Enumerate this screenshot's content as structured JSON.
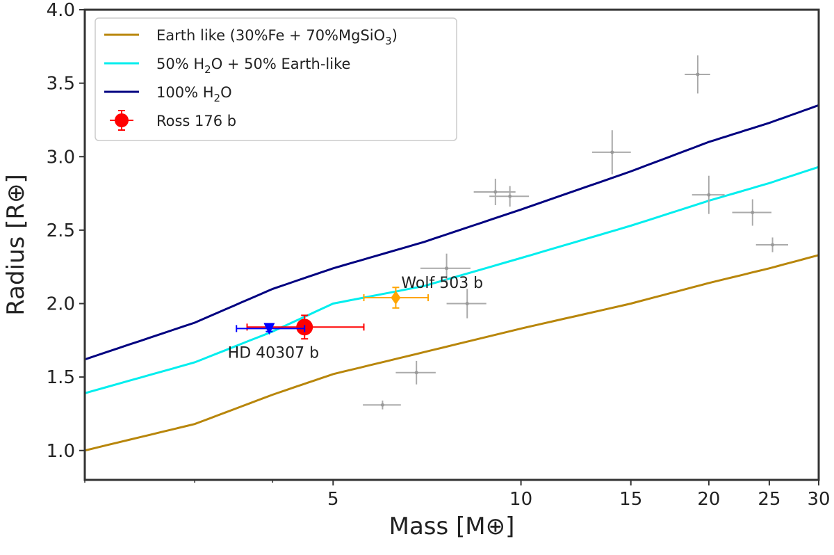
{
  "chart_data": {
    "type": "scatter",
    "xlabel": "Mass [M⊕]",
    "ylabel": "Radius [R⊕]",
    "xscale": "log",
    "xlim": [
      2.0,
      30
    ],
    "ylim": [
      0.8,
      4.0
    ],
    "x_ticks": [
      5,
      10,
      15,
      20,
      25,
      30
    ],
    "y_ticks": [
      1.0,
      1.5,
      2.0,
      2.5,
      3.0,
      3.5,
      4.0
    ],
    "y_tick_labels": [
      "1.0",
      "1.5",
      "2.0",
      "2.5",
      "3.0",
      "3.5",
      "4.0"
    ],
    "grid": false,
    "legend_position": "top-left",
    "curves": [
      {
        "name": "Earth like (30%Fe + 70%MgSiO3)",
        "color": "#b8860b",
        "x": [
          2.0,
          3.0,
          4.0,
          5.0,
          7.0,
          10.0,
          15.0,
          20.0,
          25.0,
          30.0
        ],
        "y": [
          1.0,
          1.18,
          1.38,
          1.52,
          1.67,
          1.83,
          2.0,
          2.14,
          2.24,
          2.33
        ]
      },
      {
        "name": "50% H2O + 50% Earth-like",
        "color": "#00eeee",
        "x": [
          2.0,
          3.0,
          4.0,
          5.0,
          7.0,
          10.0,
          15.0,
          20.0,
          25.0,
          30.0
        ],
        "y": [
          1.39,
          1.6,
          1.81,
          2.0,
          2.12,
          2.31,
          2.53,
          2.7,
          2.82,
          2.93
        ]
      },
      {
        "name": "100% H2O",
        "color": "#000080",
        "x": [
          2.0,
          3.0,
          4.0,
          5.0,
          7.0,
          10.0,
          15.0,
          20.0,
          25.0,
          30.0
        ],
        "y": [
          1.62,
          1.87,
          2.1,
          2.24,
          2.42,
          2.64,
          2.9,
          3.1,
          3.23,
          3.35
        ]
      }
    ],
    "background_planets": [
      {
        "x": 6.0,
        "y": 1.31,
        "xerr": 0.42,
        "yerr": 0.03
      },
      {
        "x": 6.8,
        "y": 1.53,
        "xerr": 0.5,
        "yerr": 0.08
      },
      {
        "x": 7.6,
        "y": 2.24,
        "xerr": 0.7,
        "yerr": 0.1
      },
      {
        "x": 8.2,
        "y": 2.0,
        "xerr": 0.6,
        "yerr": 0.1
      },
      {
        "x": 9.1,
        "y": 2.76,
        "xerr": 0.7,
        "yerr": 0.09
      },
      {
        "x": 9.6,
        "y": 2.73,
        "xerr": 0.7,
        "yerr": 0.07
      },
      {
        "x": 14.0,
        "y": 3.03,
        "xerr": 1.0,
        "yerr": 0.15
      },
      {
        "x": 19.2,
        "y": 3.56,
        "xerr": 0.9,
        "yerr": 0.13
      },
      {
        "x": 20.0,
        "y": 2.74,
        "xerr": 1.2,
        "yerr": 0.13
      },
      {
        "x": 23.5,
        "y": 2.62,
        "xerr": 1.7,
        "yerr": 0.09
      },
      {
        "x": 25.3,
        "y": 2.4,
        "xerr": 1.5,
        "yerr": 0.05
      }
    ],
    "highlighted": [
      {
        "name": "Ross 176 b",
        "x": 4.5,
        "y": 1.84,
        "xlo": 0.86,
        "xhi": 1.1,
        "ylo": 0.08,
        "yhi": 0.08,
        "color": "#ff0000",
        "marker": "circle",
        "legend": true
      },
      {
        "name": "HD 40307 b",
        "x": 3.95,
        "y": 1.83,
        "xlo": 0.45,
        "xhi": 0.55,
        "ylo": 0.02,
        "yhi": 0.02,
        "color": "#0000ff",
        "marker": "triangle-down",
        "legend": false
      },
      {
        "name": "Wolf 503 b",
        "x": 6.3,
        "y": 2.04,
        "xlo": 0.7,
        "xhi": 0.8,
        "ylo": 0.07,
        "yhi": 0.07,
        "color": "#ffa500",
        "marker": "diamond",
        "legend": false
      }
    ],
    "annotations": [
      "Wolf 503 b",
      "HD 40307 b"
    ],
    "legend": [
      {
        "pre": "Earth like (30%Fe + 70%MgSiO",
        "sub": "3",
        "post": ")",
        "color": "#b8860b",
        "kind": "line"
      },
      {
        "pre": "50% H",
        "sub": "2",
        "post": "O + 50% Earth-like",
        "color": "#00eeee",
        "kind": "line"
      },
      {
        "pre": "100% H",
        "sub": "2",
        "post": "O",
        "color": "#000080",
        "kind": "line"
      },
      {
        "pre": "Ross 176 b",
        "sub": "",
        "post": "",
        "color": "#ff0000",
        "kind": "marker"
      }
    ]
  }
}
